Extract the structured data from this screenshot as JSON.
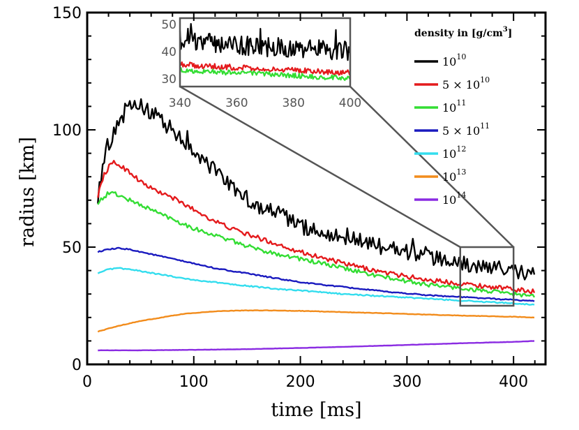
{
  "chart_data": {
    "type": "line",
    "xlabel": "time [ms]",
    "ylabel": "radius [km]",
    "xlim": [
      0,
      430
    ],
    "ylim": [
      0,
      150
    ],
    "xticks": [
      0,
      100,
      200,
      300,
      400
    ],
    "yticks": [
      0,
      50,
      100,
      150
    ],
    "legend": {
      "title": "density in [g/cm³]",
      "title_main": "density in [g/cm",
      "title_sup": "3",
      "title_tail": "]",
      "placement": "top-right"
    },
    "series": [
      {
        "name": "10^10",
        "label_base": "10",
        "label_sup": "10",
        "color": "#000000",
        "noise": 3.5,
        "points": [
          [
            10,
            72
          ],
          [
            15,
            85
          ],
          [
            20,
            93
          ],
          [
            25,
            99
          ],
          [
            30,
            104
          ],
          [
            35,
            107
          ],
          [
            40,
            109
          ],
          [
            45,
            110
          ],
          [
            50,
            110
          ],
          [
            55,
            109
          ],
          [
            60,
            108
          ],
          [
            65,
            107
          ],
          [
            70,
            104
          ],
          [
            80,
            100
          ],
          [
            90,
            96
          ],
          [
            100,
            91
          ],
          [
            110,
            87
          ],
          [
            120,
            82
          ],
          [
            130,
            78
          ],
          [
            140,
            74
          ],
          [
            150,
            70
          ],
          [
            160,
            68
          ],
          [
            170,
            66
          ],
          [
            180,
            64
          ],
          [
            190,
            62
          ],
          [
            200,
            59
          ],
          [
            220,
            56
          ],
          [
            240,
            54
          ],
          [
            260,
            52
          ],
          [
            280,
            50
          ],
          [
            300,
            48
          ],
          [
            320,
            46
          ],
          [
            340,
            44
          ],
          [
            360,
            42
          ],
          [
            380,
            41
          ],
          [
            400,
            40
          ],
          [
            420,
            38
          ]
        ]
      },
      {
        "name": "5×10^10",
        "label_base": "5 × 10",
        "label_sup": "10",
        "color": "#e41a1c",
        "noise": 1.0,
        "points": [
          [
            10,
            72
          ],
          [
            15,
            80
          ],
          [
            20,
            84
          ],
          [
            25,
            86
          ],
          [
            30,
            85
          ],
          [
            40,
            82
          ],
          [
            50,
            78
          ],
          [
            60,
            75
          ],
          [
            80,
            71
          ],
          [
            100,
            66
          ],
          [
            120,
            61
          ],
          [
            140,
            57
          ],
          [
            160,
            54
          ],
          [
            180,
            51
          ],
          [
            200,
            48
          ],
          [
            240,
            43
          ],
          [
            280,
            39
          ],
          [
            320,
            36
          ],
          [
            360,
            34
          ],
          [
            400,
            32
          ],
          [
            420,
            31
          ]
        ]
      },
      {
        "name": "10^11",
        "label_base": "10",
        "label_sup": "11",
        "color": "#33dd33",
        "noise": 0.9,
        "points": [
          [
            10,
            69
          ],
          [
            15,
            71
          ],
          [
            20,
            73
          ],
          [
            25,
            73
          ],
          [
            30,
            72
          ],
          [
            40,
            70
          ],
          [
            60,
            66
          ],
          [
            80,
            62
          ],
          [
            100,
            58
          ],
          [
            120,
            55
          ],
          [
            140,
            52
          ],
          [
            160,
            49
          ],
          [
            180,
            47
          ],
          [
            200,
            45
          ],
          [
            240,
            41
          ],
          [
            280,
            37
          ],
          [
            320,
            34
          ],
          [
            360,
            32
          ],
          [
            400,
            30
          ],
          [
            420,
            29
          ]
        ]
      },
      {
        "name": "5×10^11",
        "label_base": "5 × 10",
        "label_sup": "11",
        "color": "#1a1abf",
        "noise": 0.25,
        "points": [
          [
            10,
            48
          ],
          [
            20,
            49
          ],
          [
            30,
            49.5
          ],
          [
            40,
            49
          ],
          [
            60,
            47
          ],
          [
            80,
            45
          ],
          [
            100,
            43
          ],
          [
            120,
            41
          ],
          [
            140,
            39.5
          ],
          [
            160,
            38
          ],
          [
            180,
            36.5
          ],
          [
            200,
            35
          ],
          [
            240,
            33
          ],
          [
            280,
            31
          ],
          [
            320,
            29.5
          ],
          [
            360,
            28.5
          ],
          [
            400,
            27.5
          ],
          [
            420,
            27
          ]
        ]
      },
      {
        "name": "10^12",
        "label_base": "10",
        "label_sup": "12",
        "color": "#33ddee",
        "noise": 0.25,
        "points": [
          [
            10,
            39
          ],
          [
            20,
            40.5
          ],
          [
            30,
            41
          ],
          [
            40,
            40.5
          ],
          [
            60,
            39
          ],
          [
            80,
            37.5
          ],
          [
            100,
            36
          ],
          [
            120,
            35
          ],
          [
            140,
            34
          ],
          [
            160,
            33
          ],
          [
            180,
            32
          ],
          [
            200,
            31.5
          ],
          [
            240,
            30
          ],
          [
            280,
            29
          ],
          [
            320,
            28
          ],
          [
            360,
            27
          ],
          [
            400,
            26
          ],
          [
            420,
            25.5
          ]
        ]
      },
      {
        "name": "10^13",
        "label_base": "10",
        "label_sup": "13",
        "color": "#f28c1c",
        "noise": 0.1,
        "points": [
          [
            10,
            14
          ],
          [
            30,
            16.5
          ],
          [
            50,
            18.5
          ],
          [
            70,
            20
          ],
          [
            90,
            21.5
          ],
          [
            110,
            22.3
          ],
          [
            130,
            22.8
          ],
          [
            150,
            23
          ],
          [
            170,
            23
          ],
          [
            200,
            22.8
          ],
          [
            240,
            22.3
          ],
          [
            280,
            21.8
          ],
          [
            320,
            21.2
          ],
          [
            360,
            20.7
          ],
          [
            400,
            20.3
          ],
          [
            420,
            20
          ]
        ]
      },
      {
        "name": "10^14",
        "label_base": "10",
        "label_sup": "14",
        "color": "#8a2be2",
        "noise": 0.05,
        "points": [
          [
            10,
            6
          ],
          [
            50,
            6
          ],
          [
            100,
            6.2
          ],
          [
            150,
            6.5
          ],
          [
            200,
            7
          ],
          [
            250,
            7.6
          ],
          [
            300,
            8.3
          ],
          [
            350,
            9
          ],
          [
            400,
            9.6
          ],
          [
            420,
            10
          ]
        ]
      }
    ],
    "inset": {
      "xlim": [
        340,
        400
      ],
      "ylim": [
        27,
        52
      ],
      "xticks": [
        340,
        360,
        380,
        400
      ],
      "yticks": [
        30,
        40,
        50
      ],
      "zoom_box": {
        "x": [
          350,
          400
        ],
        "y": [
          25,
          50
        ]
      }
    }
  }
}
